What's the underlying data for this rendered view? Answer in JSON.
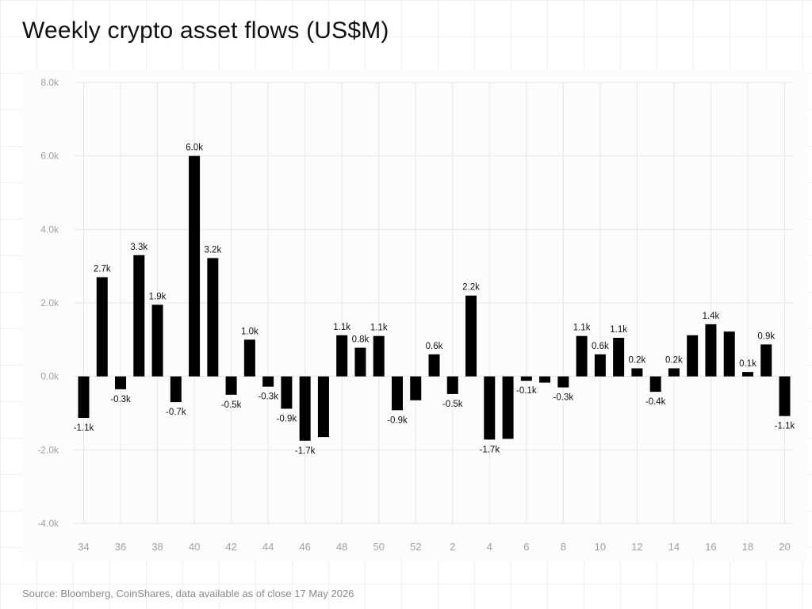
{
  "title": "Weekly crypto asset flows (US$M)",
  "source": "Source: Bloomberg, CoinShares, data available as of close 17 May 2026",
  "colors": {
    "bar": "#000000",
    "grid": "#e6e6e6",
    "tick": "#a0a0a0",
    "label": "#111111"
  },
  "chart_data": {
    "type": "bar",
    "title": "Weekly crypto asset flows (US$M)",
    "xlabel": "",
    "ylabel": "",
    "ylim": [
      -4.0,
      8.0
    ],
    "yticks": [
      -4.0,
      -2.0,
      0.0,
      2.0,
      4.0,
      6.0,
      8.0
    ],
    "ytick_labels": [
      "-4.0k",
      "-2.0k",
      "0.0k",
      "2.0k",
      "4.0k",
      "6.0k",
      "8.0k"
    ],
    "grid": true,
    "categories": [
      "34",
      "35",
      "36",
      "37",
      "38",
      "39",
      "40",
      "41",
      "42",
      "43",
      "44",
      "45",
      "46",
      "47",
      "48",
      "49",
      "50",
      "51",
      "52",
      "1",
      "2",
      "3",
      "4",
      "5",
      "6",
      "7",
      "8",
      "9",
      "10",
      "11",
      "12",
      "13",
      "14",
      "15",
      "16",
      "17",
      "18",
      "19",
      "20"
    ],
    "xtick_labels": [
      "34",
      "",
      "36",
      "",
      "38",
      "",
      "40",
      "",
      "42",
      "",
      "44",
      "",
      "46",
      "",
      "48",
      "",
      "50",
      "",
      "52",
      "",
      "2",
      "",
      "4",
      "",
      "6",
      "",
      "8",
      "",
      "10",
      "",
      "12",
      "",
      "14",
      "",
      "16",
      "",
      "18",
      "",
      "20"
    ],
    "values": [
      -1.13,
      2.7,
      -0.35,
      3.3,
      1.95,
      -0.7,
      6.0,
      3.22,
      -0.5,
      1.0,
      -0.28,
      -0.88,
      -1.75,
      -1.65,
      1.12,
      0.78,
      1.1,
      -0.92,
      -0.65,
      0.6,
      -0.48,
      2.2,
      -1.72,
      -1.7,
      -0.12,
      -0.17,
      -0.3,
      1.1,
      0.6,
      1.05,
      0.22,
      -0.42,
      0.22,
      1.12,
      1.42,
      1.22,
      0.12,
      0.87,
      -1.08
    ],
    "data_labels": [
      "-1.1k",
      "2.7k",
      "-0.3k",
      "3.3k",
      "1.9k",
      "-0.7k",
      "6.0k",
      "3.2k",
      "-0.5k",
      "1.0k",
      "-0.3k",
      "-0.9k",
      "-1.7k",
      "",
      "1.1k",
      "0.8k",
      "1.1k",
      "-0.9k",
      "",
      "0.6k",
      "-0.5k",
      "2.2k",
      "-1.7k",
      "",
      "-0.1k",
      "",
      "-0.3k",
      "1.1k",
      "0.6k",
      "1.1k",
      "0.2k",
      "-0.4k",
      "0.2k",
      "",
      "1.4k",
      "",
      "0.1k",
      "0.9k",
      "-1.1k"
    ]
  }
}
